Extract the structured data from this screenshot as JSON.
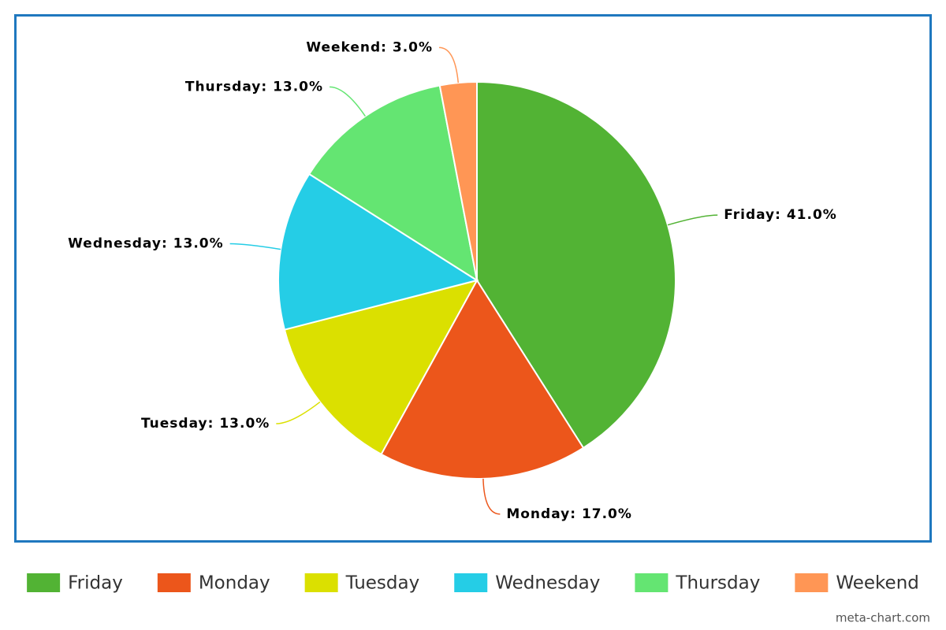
{
  "chart_data": {
    "type": "pie",
    "categories": [
      "Friday",
      "Monday",
      "Tuesday",
      "Wednesday",
      "Thursday",
      "Weekend"
    ],
    "values": [
      41,
      17,
      13,
      13,
      13,
      3
    ],
    "value_labels": [
      "Friday: 41.0%",
      "Monday: 17.0%",
      "Tuesday: 13.0%",
      "Wednesday: 13.0%",
      "Thursday: 13.0%",
      "Weekend: 3.0%"
    ],
    "colors": [
      "#52b334",
      "#ec561b",
      "#dbe000",
      "#25cde6",
      "#64e572",
      "#ff9655"
    ],
    "legend": "bottom",
    "watermark": "meta-chart.com"
  }
}
